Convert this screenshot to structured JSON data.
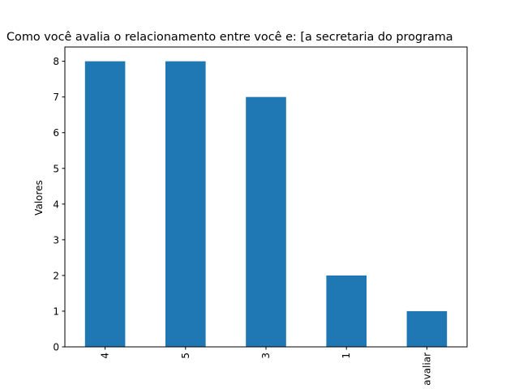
{
  "chart_data": {
    "type": "bar",
    "title": "Como você avalia o relacionamento entre você e: [a secretaria do programa",
    "xlabel": "",
    "ylabel": "Valores",
    "categories": [
      "4",
      "5",
      "3",
      "1",
      "avaliar"
    ],
    "values": [
      8,
      8,
      7,
      2,
      1
    ],
    "ylim": [
      0,
      8.4
    ],
    "yticks": [
      "0",
      "1",
      "2",
      "3",
      "4",
      "5",
      "6",
      "7",
      "8"
    ],
    "bar_color": "#1f77b4",
    "grid": false,
    "legend": "none"
  }
}
